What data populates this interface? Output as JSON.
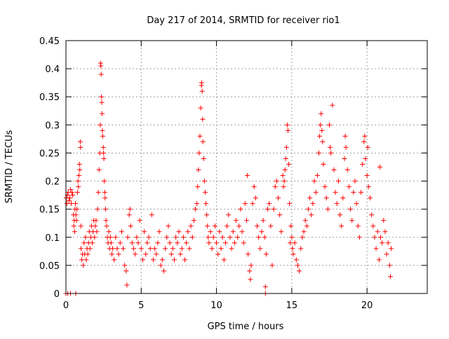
{
  "chart_data": {
    "type": "scatter",
    "title": "Day 217 of 2014, SRMTID for receiver rio1",
    "xlabel": "GPS time / hours",
    "ylabel": "SRMTID / TECUs",
    "xlim": [
      0,
      24
    ],
    "ylim": [
      0,
      0.45
    ],
    "xticks": [
      0,
      5,
      10,
      15,
      20
    ],
    "xtick_labels": [
      "0",
      "5",
      "10",
      "15",
      "20"
    ],
    "yticks": [
      0,
      0.05,
      0.1,
      0.15,
      0.2,
      0.25,
      0.3,
      0.35,
      0.4,
      0.45
    ],
    "ytick_labels": [
      "0",
      "0.05",
      "0.1",
      "0.15",
      "0.2",
      "0.25",
      "0.3",
      "0.35",
      "0.4",
      "0.45"
    ],
    "grid": true,
    "marker": "plus",
    "marker_color": "#ff0000",
    "series": [
      {
        "points": [
          [
            0.02,
            0.17
          ],
          [
            0.06,
            0.16
          ],
          [
            0.1,
            0.175
          ],
          [
            0.14,
            0.18
          ],
          [
            0.2,
            0.165
          ],
          [
            0.25,
            0.17
          ],
          [
            0.3,
            0.185
          ],
          [
            0.35,
            0.16
          ],
          [
            0.4,
            0.18
          ],
          [
            0.45,
            0.175
          ],
          [
            0.5,
            0.14
          ],
          [
            0.52,
            0.12
          ],
          [
            0.55,
            0.13
          ],
          [
            0.58,
            0.11
          ],
          [
            0.6,
            0.15
          ],
          [
            0.63,
            0.16
          ],
          [
            0.66,
            0.14
          ],
          [
            0.7,
            0.13
          ],
          [
            0.73,
            0.15
          ],
          [
            0.76,
            0.18
          ],
          [
            0.8,
            0.2
          ],
          [
            0.83,
            0.19
          ],
          [
            0.86,
            0.21
          ],
          [
            0.9,
            0.23
          ],
          [
            0.92,
            0.22
          ],
          [
            0.95,
            0.27
          ],
          [
            0.97,
            0.26
          ],
          [
            0.99,
            0.12
          ],
          [
            1.0,
            0.08
          ],
          [
            1.05,
            0.06
          ],
          [
            1.1,
            0.07
          ],
          [
            1.15,
            0.05
          ],
          [
            1.2,
            0.09
          ],
          [
            1.25,
            0.07
          ],
          [
            1.3,
            0.1
          ],
          [
            1.35,
            0.06
          ],
          [
            1.4,
            0.08
          ],
          [
            1.45,
            0.07
          ],
          [
            1.5,
            0.09
          ],
          [
            1.55,
            0.11
          ],
          [
            1.6,
            0.08
          ],
          [
            1.65,
            0.1
          ],
          [
            1.7,
            0.12
          ],
          [
            1.75,
            0.09
          ],
          [
            1.8,
            0.11
          ],
          [
            1.85,
            0.13
          ],
          [
            1.9,
            0.1
          ],
          [
            1.95,
            0.12
          ],
          [
            2.0,
            0.13
          ],
          [
            2.05,
            0.11
          ],
          [
            2.1,
            0.15
          ],
          [
            2.15,
            0.18
          ],
          [
            2.2,
            0.22
          ],
          [
            2.25,
            0.25
          ],
          [
            2.28,
            0.3
          ],
          [
            2.3,
            0.41
          ],
          [
            2.32,
            0.405
          ],
          [
            2.34,
            0.39
          ],
          [
            2.36,
            0.35
          ],
          [
            2.38,
            0.34
          ],
          [
            2.4,
            0.32
          ],
          [
            2.42,
            0.29
          ],
          [
            2.45,
            0.28
          ],
          [
            2.48,
            0.26
          ],
          [
            2.5,
            0.25
          ],
          [
            2.52,
            0.24
          ],
          [
            2.55,
            0.2
          ],
          [
            2.58,
            0.18
          ],
          [
            2.6,
            0.17
          ],
          [
            2.63,
            0.15
          ],
          [
            2.66,
            0.13
          ],
          [
            2.7,
            0.12
          ],
          [
            2.75,
            0.1
          ],
          [
            2.8,
            0.09
          ],
          [
            2.85,
            0.11
          ],
          [
            2.9,
            0.08
          ],
          [
            2.95,
            0.1
          ],
          [
            3.0,
            0.09
          ],
          [
            3.05,
            0.07
          ],
          [
            3.1,
            0.08
          ],
          [
            3.2,
            0.06
          ],
          [
            3.3,
            0.1
          ],
          [
            3.4,
            0.08
          ],
          [
            3.5,
            0.07
          ],
          [
            3.6,
            0.09
          ],
          [
            3.7,
            0.11
          ],
          [
            3.8,
            0.08
          ],
          [
            3.9,
            0.05
          ],
          [
            4.0,
            0.04
          ],
          [
            4.05,
            0.015
          ],
          [
            4.1,
            0.1
          ],
          [
            4.2,
            0.14
          ],
          [
            4.25,
            0.15
          ],
          [
            4.3,
            0.12
          ],
          [
            4.4,
            0.09
          ],
          [
            4.5,
            0.08
          ],
          [
            4.6,
            0.07
          ],
          [
            4.7,
            0.1
          ],
          [
            4.8,
            0.09
          ],
          [
            4.9,
            0.13
          ],
          [
            5.0,
            0.08
          ],
          [
            5.1,
            0.06
          ],
          [
            5.2,
            0.11
          ],
          [
            5.3,
            0.07
          ],
          [
            5.4,
            0.09
          ],
          [
            5.5,
            0.1
          ],
          [
            5.6,
            0.08
          ],
          [
            5.7,
            0.14
          ],
          [
            5.8,
            0.06
          ],
          [
            5.9,
            0.08
          ],
          [
            6.0,
            0.07
          ],
          [
            6.1,
            0.09
          ],
          [
            6.2,
            0.11
          ],
          [
            6.3,
            0.05
          ],
          [
            6.4,
            0.06
          ],
          [
            6.5,
            0.04
          ],
          [
            6.6,
            0.08
          ],
          [
            6.7,
            0.1
          ],
          [
            6.8,
            0.12
          ],
          [
            6.9,
            0.09
          ],
          [
            7.0,
            0.07
          ],
          [
            7.1,
            0.08
          ],
          [
            7.2,
            0.06
          ],
          [
            7.3,
            0.1
          ],
          [
            7.4,
            0.09
          ],
          [
            7.5,
            0.11
          ],
          [
            7.6,
            0.07
          ],
          [
            7.7,
            0.08
          ],
          [
            7.8,
            0.1
          ],
          [
            7.9,
            0.06
          ],
          [
            8.0,
            0.09
          ],
          [
            8.1,
            0.11
          ],
          [
            8.2,
            0.08
          ],
          [
            8.3,
            0.12
          ],
          [
            8.4,
            0.1
          ],
          [
            8.5,
            0.13
          ],
          [
            8.6,
            0.15
          ],
          [
            8.7,
            0.16
          ],
          [
            8.75,
            0.19
          ],
          [
            8.8,
            0.22
          ],
          [
            8.85,
            0.25
          ],
          [
            8.9,
            0.28
          ],
          [
            8.95,
            0.33
          ],
          [
            9.0,
            0.37
          ],
          [
            9.02,
            0.375
          ],
          [
            9.05,
            0.36
          ],
          [
            9.08,
            0.31
          ],
          [
            9.1,
            0.27
          ],
          [
            9.15,
            0.24
          ],
          [
            9.2,
            0.2
          ],
          [
            9.25,
            0.18
          ],
          [
            9.3,
            0.16
          ],
          [
            9.35,
            0.14
          ],
          [
            9.4,
            0.12
          ],
          [
            9.45,
            0.1
          ],
          [
            9.5,
            0.09
          ],
          [
            9.6,
            0.11
          ],
          [
            9.7,
            0.08
          ],
          [
            9.8,
            0.1
          ],
          [
            9.9,
            0.12
          ],
          [
            10.0,
            0.09
          ],
          [
            10.1,
            0.07
          ],
          [
            10.2,
            0.11
          ],
          [
            10.3,
            0.08
          ],
          [
            10.4,
            0.1
          ],
          [
            10.5,
            0.06
          ],
          [
            10.6,
            0.09
          ],
          [
            10.7,
            0.12
          ],
          [
            10.8,
            0.14
          ],
          [
            10.9,
            0.1
          ],
          [
            11.0,
            0.08
          ],
          [
            11.1,
            0.11
          ],
          [
            11.2,
            0.09
          ],
          [
            11.3,
            0.13
          ],
          [
            11.4,
            0.1
          ],
          [
            11.5,
            0.12
          ],
          [
            11.6,
            0.15
          ],
          [
            11.7,
            0.11
          ],
          [
            11.8,
            0.09
          ],
          [
            11.9,
            0.16
          ],
          [
            12.0,
            0.13
          ],
          [
            12.05,
            0.21
          ],
          [
            12.1,
            0.07
          ],
          [
            12.2,
            0.04
          ],
          [
            12.25,
            0.025
          ],
          [
            12.3,
            0.05
          ],
          [
            12.4,
            0.16
          ],
          [
            12.5,
            0.19
          ],
          [
            12.6,
            0.17
          ],
          [
            12.7,
            0.12
          ],
          [
            12.8,
            0.1
          ],
          [
            12.9,
            0.08
          ],
          [
            13.0,
            0.11
          ],
          [
            13.1,
            0.13
          ],
          [
            13.2,
            0.1
          ],
          [
            13.25,
            0.012
          ],
          [
            13.3,
            0.07
          ],
          [
            13.4,
            0.15
          ],
          [
            13.5,
            0.16
          ],
          [
            13.6,
            0.12
          ],
          [
            13.7,
            0.05
          ],
          [
            13.8,
            0.15
          ],
          [
            13.9,
            0.19
          ],
          [
            14.0,
            0.2
          ],
          [
            14.1,
            0.17
          ],
          [
            14.2,
            0.14
          ],
          [
            14.3,
            0.11
          ],
          [
            14.4,
            0.21
          ],
          [
            14.45,
            0.19
          ],
          [
            14.5,
            0.2
          ],
          [
            14.55,
            0.22
          ],
          [
            14.6,
            0.24
          ],
          [
            14.65,
            0.26
          ],
          [
            14.7,
            0.3
          ],
          [
            14.75,
            0.29
          ],
          [
            14.8,
            0.23
          ],
          [
            14.85,
            0.16
          ],
          [
            14.9,
            0.09
          ],
          [
            14.95,
            0.12
          ],
          [
            15.0,
            0.1
          ],
          [
            15.05,
            0.08
          ],
          [
            15.1,
            0.07
          ],
          [
            15.2,
            0.09
          ],
          [
            15.3,
            0.06
          ],
          [
            15.4,
            0.05
          ],
          [
            15.5,
            0.04
          ],
          [
            15.6,
            0.08
          ],
          [
            15.7,
            0.1
          ],
          [
            15.8,
            0.11
          ],
          [
            15.9,
            0.13
          ],
          [
            16.0,
            0.12
          ],
          [
            16.1,
            0.15
          ],
          [
            16.2,
            0.17
          ],
          [
            16.3,
            0.14
          ],
          [
            16.4,
            0.16
          ],
          [
            16.5,
            0.2
          ],
          [
            16.6,
            0.18
          ],
          [
            16.7,
            0.21
          ],
          [
            16.8,
            0.25
          ],
          [
            16.85,
            0.28
          ],
          [
            16.9,
            0.3
          ],
          [
            16.95,
            0.32
          ],
          [
            17.0,
            0.29
          ],
          [
            17.05,
            0.27
          ],
          [
            17.1,
            0.23
          ],
          [
            17.2,
            0.19
          ],
          [
            17.3,
            0.17
          ],
          [
            17.4,
            0.15
          ],
          [
            17.5,
            0.3
          ],
          [
            17.55,
            0.26
          ],
          [
            17.6,
            0.25
          ],
          [
            17.7,
            0.335
          ],
          [
            17.8,
            0.22
          ],
          [
            17.9,
            0.18
          ],
          [
            18.0,
            0.16
          ],
          [
            18.1,
            0.2
          ],
          [
            18.2,
            0.14
          ],
          [
            18.3,
            0.12
          ],
          [
            18.4,
            0.17
          ],
          [
            18.5,
            0.24
          ],
          [
            18.55,
            0.28
          ],
          [
            18.6,
            0.26
          ],
          [
            18.7,
            0.22
          ],
          [
            18.8,
            0.19
          ],
          [
            18.9,
            0.15
          ],
          [
            19.0,
            0.13
          ],
          [
            19.1,
            0.18
          ],
          [
            19.2,
            0.2
          ],
          [
            19.3,
            0.16
          ],
          [
            19.4,
            0.12
          ],
          [
            19.5,
            0.1
          ],
          [
            19.6,
            0.18
          ],
          [
            19.7,
            0.23
          ],
          [
            19.8,
            0.27
          ],
          [
            19.85,
            0.28
          ],
          [
            19.9,
            0.24
          ],
          [
            20.0,
            0.21
          ],
          [
            20.05,
            0.26
          ],
          [
            20.1,
            0.19
          ],
          [
            20.2,
            0.17
          ],
          [
            20.3,
            0.14
          ],
          [
            20.4,
            0.12
          ],
          [
            20.5,
            0.1
          ],
          [
            20.6,
            0.08
          ],
          [
            20.7,
            0.11
          ],
          [
            20.8,
            0.06
          ],
          [
            20.85,
            0.225
          ],
          [
            20.9,
            0.1
          ],
          [
            21.0,
            0.09
          ],
          [
            21.1,
            0.13
          ],
          [
            21.2,
            0.11
          ],
          [
            21.3,
            0.07
          ],
          [
            21.4,
            0.09
          ],
          [
            21.5,
            0.05
          ],
          [
            21.55,
            0.03
          ],
          [
            21.6,
            0.08
          ],
          [
            0.0,
            0.0
          ],
          [
            0.12,
            0.0
          ],
          [
            0.3,
            0.0
          ],
          [
            0.65,
            0.0
          ],
          [
            13.25,
            0.0
          ]
        ]
      }
    ]
  }
}
